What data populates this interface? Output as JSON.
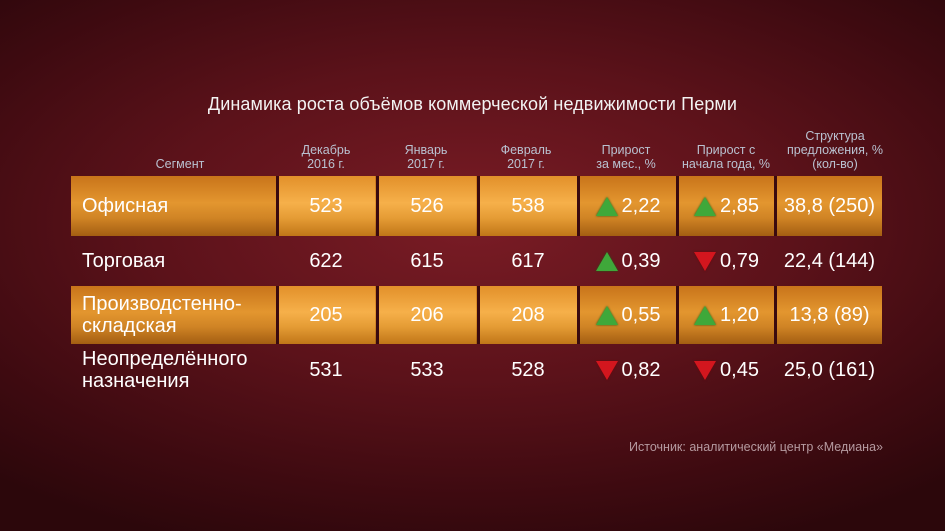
{
  "title": "Динамика роста объёмов коммерческой недвижимости Перми",
  "headers": {
    "segment": "Сегмент",
    "dec_1": "Декабрь",
    "dec_2": "2016 г.",
    "jan_1": "Январь",
    "jan_2": "2017 г.",
    "feb_1": "Февраль",
    "feb_2": "2017 г.",
    "mom_1": "Прирост",
    "mom_2": "за мес., %",
    "ytd_1": "Прирост с",
    "ytd_2": "начала года, %",
    "str_1": "Структура",
    "str_2": "предложения, %",
    "str_3": "(кол-во)"
  },
  "rows": [
    {
      "seg1": "Офисная",
      "seg2": "",
      "dec": "523",
      "jan": "526",
      "feb": "538",
      "mom": "2,22",
      "mom_dir": "up",
      "ytd": "2,85",
      "ytd_dir": "up",
      "structure": "38,8 (250)"
    },
    {
      "seg1": "Торговая",
      "seg2": "",
      "dec": "622",
      "jan": "615",
      "feb": "617",
      "mom": "0,39",
      "mom_dir": "up",
      "ytd": "0,79",
      "ytd_dir": "down",
      "structure": "22,4 (144)"
    },
    {
      "seg1": "Производстенно-",
      "seg2": "складская",
      "dec": "205",
      "jan": "206",
      "feb": "208",
      "mom": "0,55",
      "mom_dir": "up",
      "ytd": "1,20",
      "ytd_dir": "up",
      "structure": "13,8 (89)"
    },
    {
      "seg1": "Неопределённого",
      "seg2": "назначения",
      "dec": "531",
      "jan": "533",
      "feb": "528",
      "mom": "0,82",
      "mom_dir": "down",
      "ytd": "0,45",
      "ytd_dir": "down",
      "structure": "25,0 (161)"
    }
  ],
  "source": "Источник: аналитический центр «Медиана»",
  "colors": {
    "band": "#d98a28",
    "up": "#3fa83a",
    "down": "#d3161e",
    "background": "#5c121a"
  }
}
